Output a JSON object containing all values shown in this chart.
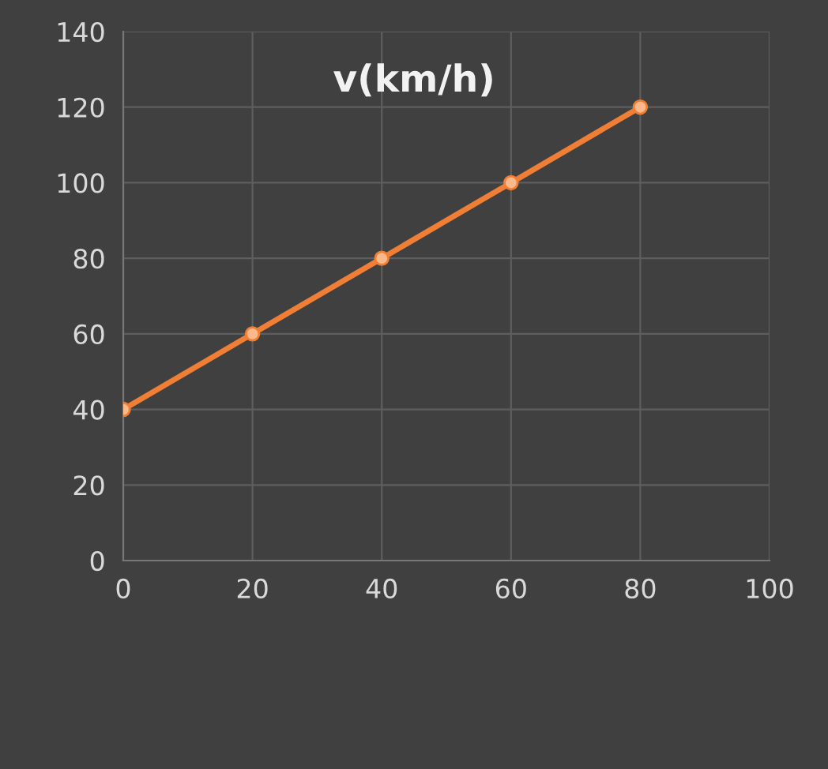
{
  "chart_data": {
    "type": "line",
    "title": "v(km/h)",
    "x": [
      0,
      20,
      40,
      60,
      80
    ],
    "series": [
      {
        "color": "#f07f35",
        "values": [
          40,
          60,
          80,
          100,
          120
        ]
      }
    ],
    "xlim": [
      0,
      100
    ],
    "xticks": [
      0,
      20,
      40,
      60,
      80,
      100
    ],
    "ylim": [
      0,
      140
    ],
    "yticks": [
      0,
      20,
      40,
      60,
      80,
      100,
      120,
      140
    ],
    "grid": true,
    "marker": "circle",
    "line_style": "solid",
    "legend": false
  }
}
